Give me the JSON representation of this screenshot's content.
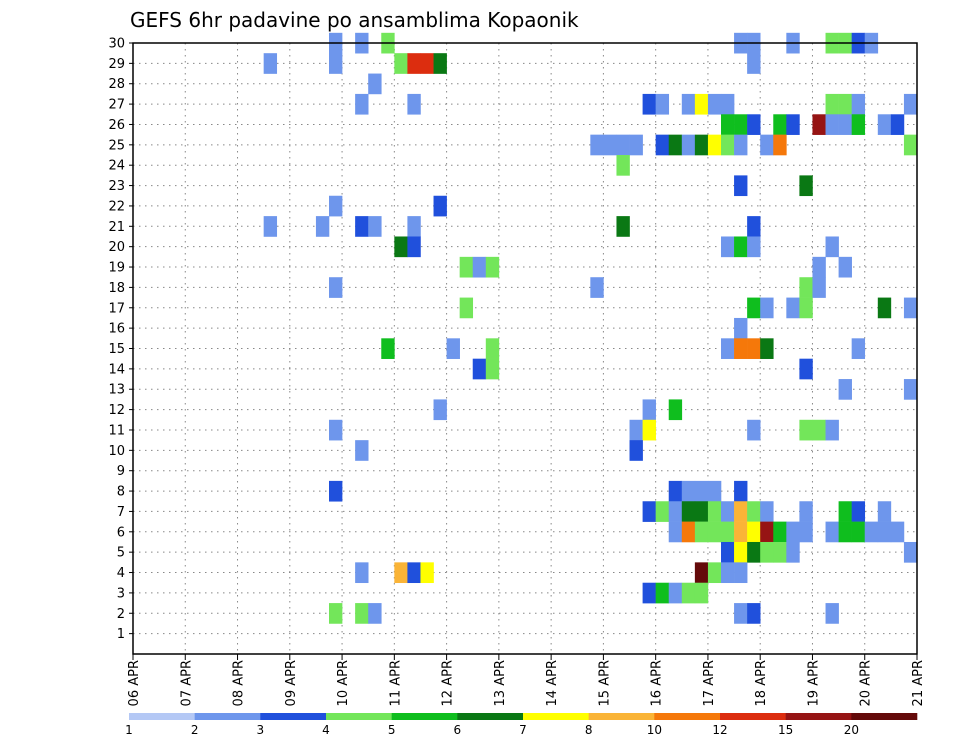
{
  "chart_data": {
    "type": "heatmap",
    "title": "GEFS 6hr padavine po ansamblima Kopaonik",
    "xlabel": "",
    "ylabel": "",
    "x_ticks": [
      "06 APR",
      "07 APR",
      "08 APR",
      "09 APR",
      "10 APR",
      "11 APR",
      "12 APR",
      "13 APR",
      "14 APR",
      "15 APR",
      "16 APR",
      "17 APR",
      "18 APR",
      "19 APR",
      "20 APR",
      "21 APR"
    ],
    "x_range_days": [
      6,
      21
    ],
    "y_ticks": [
      1,
      2,
      3,
      4,
      5,
      6,
      7,
      8,
      9,
      10,
      11,
      12,
      13,
      14,
      15,
      16,
      17,
      18,
      19,
      20,
      21,
      22,
      23,
      24,
      25,
      26,
      27,
      28,
      29,
      30
    ],
    "y_range": [
      0,
      30
    ],
    "grid": true,
    "legend_position": "bottom",
    "scale": {
      "colors": [
        "#b4c8f5",
        "#6e96ec",
        "#2050dc",
        "#73e65a",
        "#0fbe1e",
        "#0a7814",
        "#ffff00",
        "#fab437",
        "#f5780a",
        "#dc2d0f",
        "#961414",
        "#640a0a"
      ],
      "labels": [
        "1",
        "2",
        "3",
        "4",
        "5",
        "6",
        "7",
        "8",
        "10",
        "12",
        "15",
        "20"
      ]
    },
    "cells": [
      [
        9.75,
        30,
        1
      ],
      [
        10.25,
        30,
        1
      ],
      [
        10.75,
        30,
        3
      ],
      [
        17.5,
        30,
        1
      ],
      [
        17.75,
        30,
        1
      ],
      [
        18.5,
        30,
        1
      ],
      [
        19.25,
        30,
        3
      ],
      [
        19.5,
        30,
        3
      ],
      [
        19.75,
        30,
        2
      ],
      [
        20,
        30,
        1
      ],
      [
        8.5,
        29,
        1
      ],
      [
        9.75,
        29,
        1
      ],
      [
        11,
        29,
        3
      ],
      [
        11.25,
        29,
        9
      ],
      [
        11.5,
        29,
        9
      ],
      [
        11.75,
        29,
        5
      ],
      [
        17.75,
        29,
        1
      ],
      [
        10.5,
        28,
        1
      ],
      [
        10.25,
        27,
        1
      ],
      [
        11.25,
        27,
        1
      ],
      [
        15.75,
        27,
        2
      ],
      [
        16,
        27,
        1
      ],
      [
        16.5,
        27,
        1
      ],
      [
        16.75,
        27,
        6
      ],
      [
        17,
        27,
        1
      ],
      [
        17.25,
        27,
        1
      ],
      [
        19.25,
        27,
        3
      ],
      [
        19.5,
        27,
        3
      ],
      [
        19.75,
        27,
        1
      ],
      [
        20.75,
        27,
        1
      ],
      [
        17.25,
        26,
        4
      ],
      [
        17.5,
        26,
        4
      ],
      [
        17.75,
        26,
        2
      ],
      [
        18.25,
        26,
        4
      ],
      [
        18.5,
        26,
        2
      ],
      [
        19,
        26,
        10
      ],
      [
        19.25,
        26,
        1
      ],
      [
        19.5,
        26,
        1
      ],
      [
        19.75,
        26,
        4
      ],
      [
        20.25,
        26,
        1
      ],
      [
        20.5,
        26,
        2
      ],
      [
        14.75,
        25,
        1
      ],
      [
        15,
        25,
        1
      ],
      [
        15.25,
        25,
        1
      ],
      [
        15.5,
        25,
        1
      ],
      [
        16,
        25,
        2
      ],
      [
        16.25,
        25,
        5
      ],
      [
        16.5,
        25,
        1
      ],
      [
        16.75,
        25,
        5
      ],
      [
        17,
        25,
        6
      ],
      [
        17.25,
        25,
        3
      ],
      [
        17.5,
        25,
        1
      ],
      [
        18,
        25,
        1
      ],
      [
        18.25,
        25,
        8
      ],
      [
        20.75,
        25,
        3
      ],
      [
        15.25,
        24,
        3
      ],
      [
        17.5,
        23,
        2
      ],
      [
        18.75,
        23,
        5
      ],
      [
        9.75,
        22,
        1
      ],
      [
        11.75,
        22,
        2
      ],
      [
        8.5,
        21,
        1
      ],
      [
        9.5,
        21,
        1
      ],
      [
        10.25,
        21,
        2
      ],
      [
        10.5,
        21,
        1
      ],
      [
        11.25,
        21,
        1
      ],
      [
        15.25,
        21,
        5
      ],
      [
        17.75,
        21,
        2
      ],
      [
        11,
        20,
        5
      ],
      [
        11.25,
        20,
        2
      ],
      [
        17.25,
        20,
        1
      ],
      [
        17.5,
        20,
        4
      ],
      [
        17.75,
        20,
        1
      ],
      [
        19.25,
        20,
        1
      ],
      [
        12.25,
        19,
        3
      ],
      [
        12.5,
        19,
        1
      ],
      [
        12.75,
        19,
        3
      ],
      [
        19,
        19,
        1
      ],
      [
        19.5,
        19,
        1
      ],
      [
        9.75,
        18,
        1
      ],
      [
        14.75,
        18,
        1
      ],
      [
        18.75,
        18,
        3
      ],
      [
        19,
        18,
        1
      ],
      [
        12.25,
        17,
        3
      ],
      [
        17.75,
        17,
        4
      ],
      [
        18,
        17,
        1
      ],
      [
        18.5,
        17,
        1
      ],
      [
        18.75,
        17,
        3
      ],
      [
        20.25,
        17,
        5
      ],
      [
        20.75,
        17,
        1
      ],
      [
        17.5,
        16,
        1
      ],
      [
        10.75,
        15,
        4
      ],
      [
        12,
        15,
        1
      ],
      [
        12.75,
        15,
        3
      ],
      [
        17.25,
        15,
        1
      ],
      [
        17.5,
        15,
        8
      ],
      [
        17.75,
        15,
        8
      ],
      [
        18,
        15,
        5
      ],
      [
        19.75,
        15,
        1
      ],
      [
        12.5,
        14,
        2
      ],
      [
        12.75,
        14,
        3
      ],
      [
        18.75,
        14,
        2
      ],
      [
        19.5,
        13,
        1
      ],
      [
        20.75,
        13,
        1
      ],
      [
        11.75,
        12,
        1
      ],
      [
        15.75,
        12,
        1
      ],
      [
        16.25,
        12,
        4
      ],
      [
        9.75,
        11,
        1
      ],
      [
        15.5,
        11,
        1
      ],
      [
        15.75,
        11,
        6
      ],
      [
        17.75,
        11,
        1
      ],
      [
        18.75,
        11,
        3
      ],
      [
        19,
        11,
        3
      ],
      [
        19.25,
        11,
        1
      ],
      [
        10.25,
        10,
        1
      ],
      [
        15.5,
        10,
        2
      ],
      [
        9.75,
        8,
        2
      ],
      [
        16.25,
        8,
        2
      ],
      [
        16.5,
        8,
        1
      ],
      [
        16.75,
        8,
        1
      ],
      [
        17,
        8,
        1
      ],
      [
        17.5,
        8,
        2
      ],
      [
        15.75,
        7,
        2
      ],
      [
        16,
        7,
        3
      ],
      [
        16.25,
        7,
        1
      ],
      [
        16.5,
        7,
        5
      ],
      [
        16.75,
        7,
        5
      ],
      [
        17,
        7,
        3
      ],
      [
        17.25,
        7,
        1
      ],
      [
        17.5,
        7,
        7
      ],
      [
        17.75,
        7,
        3
      ],
      [
        18,
        7,
        1
      ],
      [
        18.75,
        7,
        1
      ],
      [
        19.5,
        7,
        4
      ],
      [
        19.75,
        7,
        2
      ],
      [
        20.25,
        7,
        1
      ],
      [
        16.25,
        6,
        1
      ],
      [
        16.5,
        6,
        8
      ],
      [
        16.75,
        6,
        3
      ],
      [
        17,
        6,
        3
      ],
      [
        17.25,
        6,
        3
      ],
      [
        17.5,
        6,
        7
      ],
      [
        17.75,
        6,
        6
      ],
      [
        18,
        6,
        10
      ],
      [
        18.25,
        6,
        4
      ],
      [
        18.5,
        6,
        1
      ],
      [
        18.75,
        6,
        1
      ],
      [
        19.25,
        6,
        1
      ],
      [
        19.5,
        6,
        4
      ],
      [
        19.75,
        6,
        4
      ],
      [
        20,
        6,
        1
      ],
      [
        20.25,
        6,
        1
      ],
      [
        20.5,
        6,
        1
      ],
      [
        17.25,
        5,
        2
      ],
      [
        17.5,
        5,
        6
      ],
      [
        17.75,
        5,
        5
      ],
      [
        18,
        5,
        3
      ],
      [
        18.25,
        5,
        3
      ],
      [
        18.5,
        5,
        1
      ],
      [
        20.75,
        5,
        1
      ],
      [
        10.25,
        4,
        1
      ],
      [
        11,
        4,
        7
      ],
      [
        11.25,
        4,
        2
      ],
      [
        11.5,
        4,
        6
      ],
      [
        16.75,
        4,
        11
      ],
      [
        17,
        4,
        3
      ],
      [
        17.25,
        4,
        1
      ],
      [
        17.5,
        4,
        1
      ],
      [
        15.75,
        3,
        2
      ],
      [
        16,
        3,
        4
      ],
      [
        16.25,
        3,
        1
      ],
      [
        16.5,
        3,
        3
      ],
      [
        16.75,
        3,
        3
      ],
      [
        9.75,
        2,
        3
      ],
      [
        10.25,
        2,
        3
      ],
      [
        10.5,
        2,
        1
      ],
      [
        17.5,
        2,
        1
      ],
      [
        17.75,
        2,
        2
      ],
      [
        19.25,
        2,
        1
      ]
    ]
  }
}
